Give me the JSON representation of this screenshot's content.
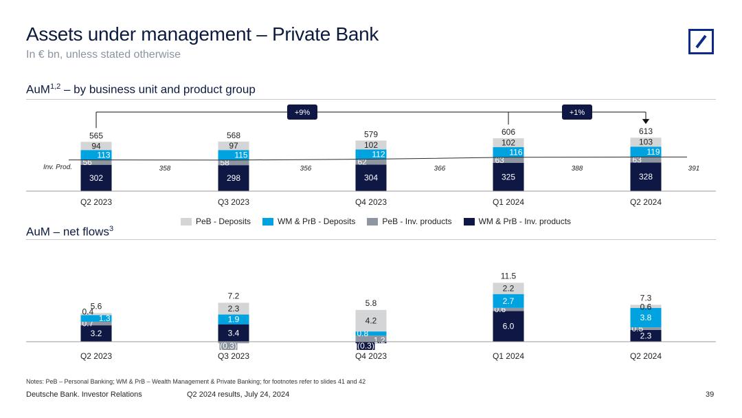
{
  "header": {
    "title": "Assets under management – Private Bank",
    "subtitle": "In € bn, unless stated otherwise"
  },
  "logo": {
    "name": "deutsche-bank-logo",
    "color": "#0b2a8a"
  },
  "colors": {
    "peb_deposits": "#d4d5d7",
    "wm_deposits": "#00a3e0",
    "peb_inv": "#8d96a1",
    "wm_inv": "#0f1745",
    "callout": "#0f1745"
  },
  "legend": [
    {
      "label": "PeB - Deposits",
      "color": "#d4d5d7"
    },
    {
      "label": "WM & PrB - Deposits",
      "color": "#00a3e0"
    },
    {
      "label": "PeB - Inv. products",
      "color": "#8d96a1"
    },
    {
      "label": "WM & PrB - Inv. products",
      "color": "#0f1745"
    }
  ],
  "chart_data": [
    {
      "type": "bar",
      "stacked": true,
      "title_main": "AuM",
      "title_sup": "1,2",
      "title_rest": " – by business unit and product group",
      "categories": [
        "Q2 2023",
        "Q3 2023",
        "Q4 2023",
        "Q1 2024",
        "Q2 2024"
      ],
      "series": [
        {
          "name": "WM & PrB - Inv. products",
          "values": [
            302,
            298,
            304,
            325,
            328
          ],
          "labels": [
            "302",
            "298",
            "304",
            "325",
            "328"
          ]
        },
        {
          "name": "PeB - Inv. products",
          "values": [
            56,
            58,
            62,
            63,
            63
          ],
          "labels": [
            "56",
            "58",
            "62",
            "63",
            "63"
          ]
        },
        {
          "name": "WM & PrB - Deposits",
          "values": [
            113,
            115,
            112,
            116,
            119
          ],
          "labels": [
            "113",
            "115",
            "112",
            "116",
            "119"
          ]
        },
        {
          "name": "PeB - Deposits",
          "values": [
            94,
            97,
            102,
            102,
            103
          ],
          "labels": [
            "94",
            "97",
            "102",
            "102",
            "103"
          ]
        }
      ],
      "totals": [
        "565",
        "568",
        "579",
        "606",
        "613"
      ],
      "inv_prod_label": "Inv. Prod.",
      "inv_prod_values": [
        "358",
        "356",
        "366",
        "388",
        "391"
      ],
      "growth_callouts": [
        {
          "label": "+9%",
          "from": "Q2 2023",
          "to": "Q2 2024"
        },
        {
          "label": "+1%",
          "from": "Q1 2024",
          "to": "Q2 2024"
        }
      ]
    },
    {
      "type": "bar",
      "stacked": true,
      "title_main": "AuM – net flows",
      "title_sup": "3",
      "categories": [
        "Q2 2023",
        "Q3 2023",
        "Q4 2023",
        "Q1 2024",
        "Q2 2024"
      ],
      "series": [
        {
          "name": "WM & PrB - Inv. products",
          "values": [
            3.2,
            3.4,
            -0.3,
            6.0,
            2.3
          ],
          "labels": [
            "3.2",
            "3.4",
            "(0.3)",
            "6.0",
            "2.3"
          ]
        },
        {
          "name": "PeB - Inv. products",
          "values": [
            0.7,
            -0.3,
            1.2,
            0.6,
            0.5
          ],
          "labels": [
            "0.7",
            "(0.3)",
            "1.2",
            "0.6",
            "0.5"
          ]
        },
        {
          "name": "WM & PrB - Deposits",
          "values": [
            1.3,
            1.9,
            0.8,
            2.7,
            3.8
          ],
          "labels": [
            "1.3",
            "1.9",
            "0.8",
            "2.7",
            "3.8"
          ]
        },
        {
          "name": "PeB - Deposits",
          "values": [
            0.4,
            2.3,
            4.2,
            2.2,
            0.6
          ],
          "labels": [
            "0.4",
            "2.3",
            "4.2",
            "2.2",
            "0.6"
          ]
        }
      ],
      "totals": [
        "5.6",
        "7.2",
        "5.8",
        "11.5",
        "7.3"
      ]
    }
  ],
  "notes": "Notes: PeB – Personal Banking; WM & PrB – Wealth Management & Private Banking; for footnotes refer to slides 41 and 42",
  "footer": {
    "org": "Deutsche Bank. Investor Relations",
    "event": "Q2 2024 results, July 24, 2024",
    "page": "39"
  }
}
